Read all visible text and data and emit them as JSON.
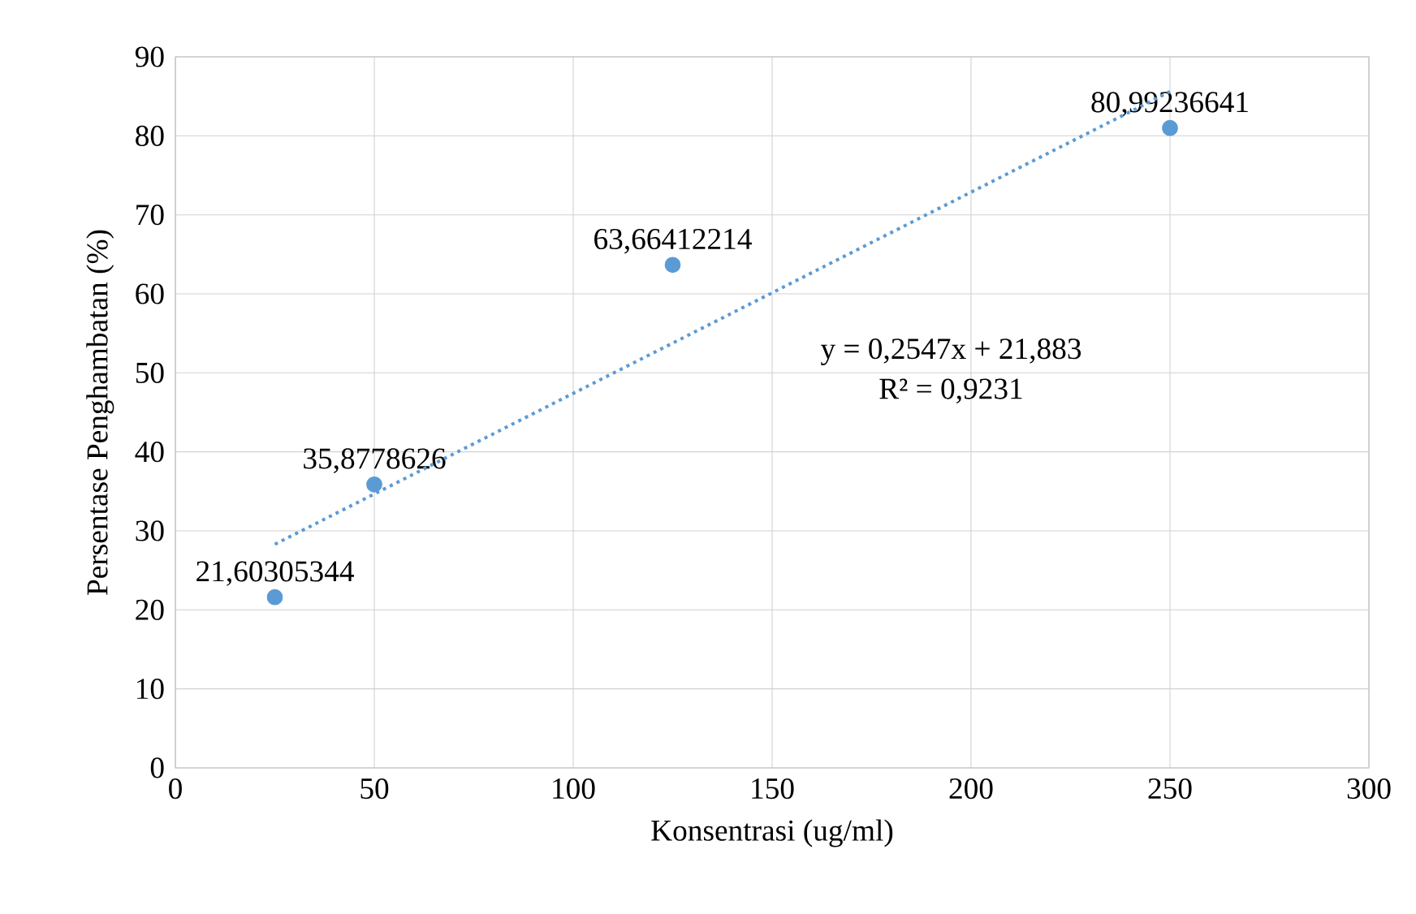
{
  "chart_data": {
    "type": "scatter",
    "xlabel": "Konsentrasi (ug/ml)",
    "ylabel": "Persentase Penghambatan (%)",
    "xlim": [
      0,
      300
    ],
    "ylim": [
      0,
      90
    ],
    "xticks": [
      0,
      50,
      100,
      150,
      200,
      250,
      300
    ],
    "yticks": [
      0,
      10,
      20,
      30,
      40,
      50,
      60,
      70,
      80,
      90
    ],
    "grid": true,
    "marker": "circle",
    "series": [
      {
        "color": "#5b9bd5",
        "x": [
          25,
          50,
          125,
          250
        ],
        "values": [
          21.60305344,
          35.8778626,
          63.66412214,
          80.99236641
        ],
        "value_labels": [
          "21,60305344",
          "35,8778626",
          "63,66412214",
          "80,99236641"
        ]
      },
      {
        "type": "line",
        "color": "#5b9bd5",
        "line_style": "dotted",
        "marker": "none",
        "x": [
          25,
          250
        ],
        "values": [
          28.3,
          85.6
        ]
      }
    ],
    "annotations": [
      "y = 0,2547x + 21,883",
      "R² = 0,9231"
    ]
  }
}
